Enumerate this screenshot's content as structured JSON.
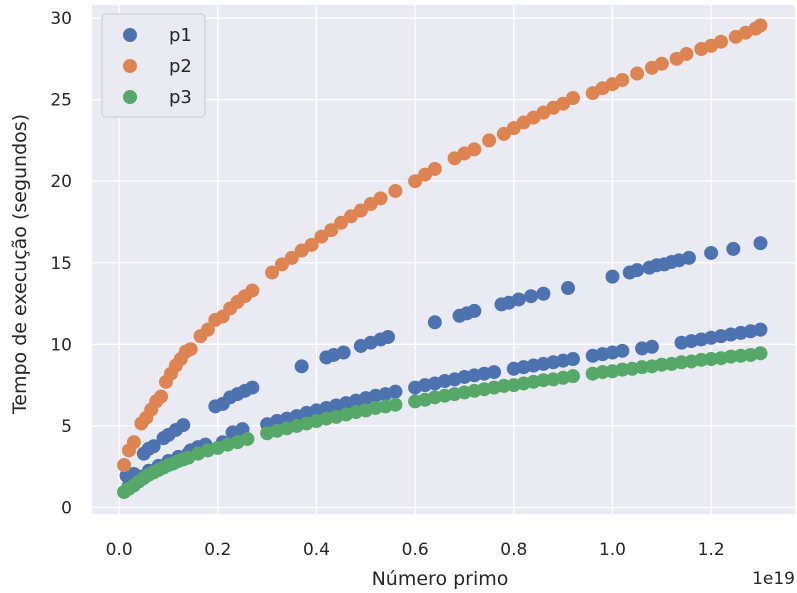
{
  "chart_data": {
    "type": "scatter",
    "xlabel": "Número primo",
    "ylabel": "Tempo de execução (segundos)",
    "x_offset_text": "1e19",
    "xlim": [
      -0.055,
      1.37
    ],
    "ylim": [
      -0.4,
      30.8
    ],
    "x_ticks": [
      0.0,
      0.2,
      0.4,
      0.6,
      0.8,
      1.0,
      1.2
    ],
    "x_tick_labels": [
      "0.0",
      "0.2",
      "0.4",
      "0.6",
      "0.8",
      "1.0",
      "1.2"
    ],
    "y_ticks": [
      0,
      5,
      10,
      15,
      20,
      25,
      30
    ],
    "y_tick_labels": [
      "0",
      "5",
      "10",
      "15",
      "20",
      "25",
      "30"
    ],
    "grid": true,
    "legend_position": "top-left",
    "colors": {
      "background": "#eaeaf2",
      "grid": "#ffffff",
      "p1": "#4c72b0",
      "p2": "#dd8452",
      "p3": "#55a868"
    },
    "series": [
      {
        "name": "p1",
        "color": "#4c72b0",
        "points": [
          [
            0.015,
            1.95
          ],
          [
            0.03,
            2.05
          ],
          [
            0.05,
            3.3
          ],
          [
            0.06,
            3.6
          ],
          [
            0.07,
            3.75
          ],
          [
            0.09,
            4.25
          ],
          [
            0.1,
            4.45
          ],
          [
            0.115,
            4.75
          ],
          [
            0.13,
            5.05
          ],
          [
            0.145,
            3.5
          ],
          [
            0.16,
            3.7
          ],
          [
            0.175,
            3.85
          ],
          [
            0.195,
            6.2
          ],
          [
            0.21,
            6.35
          ],
          [
            0.225,
            6.75
          ],
          [
            0.24,
            6.95
          ],
          [
            0.255,
            7.15
          ],
          [
            0.27,
            7.35
          ],
          [
            0.37,
            8.65
          ],
          [
            0.42,
            9.2
          ],
          [
            0.435,
            9.35
          ],
          [
            0.455,
            9.5
          ],
          [
            0.49,
            9.9
          ],
          [
            0.51,
            10.1
          ],
          [
            0.53,
            10.3
          ],
          [
            0.545,
            10.45
          ],
          [
            0.64,
            11.35
          ],
          [
            0.69,
            11.75
          ],
          [
            0.705,
            11.9
          ],
          [
            0.72,
            12.05
          ],
          [
            0.775,
            12.45
          ],
          [
            0.79,
            12.55
          ],
          [
            0.81,
            12.75
          ],
          [
            0.835,
            12.95
          ],
          [
            0.86,
            13.1
          ],
          [
            0.91,
            13.45
          ],
          [
            1.0,
            14.15
          ],
          [
            1.035,
            14.4
          ],
          [
            1.05,
            14.55
          ],
          [
            1.075,
            14.7
          ],
          [
            1.09,
            14.85
          ],
          [
            1.105,
            14.9
          ],
          [
            1.12,
            15.05
          ],
          [
            1.135,
            15.15
          ],
          [
            1.155,
            15.3
          ],
          [
            1.2,
            15.6
          ],
          [
            1.245,
            15.85
          ],
          [
            1.3,
            16.2
          ],
          [
            0.02,
            1.35
          ],
          [
            0.04,
            1.9
          ],
          [
            0.06,
            2.25
          ],
          [
            0.08,
            2.55
          ],
          [
            0.1,
            2.85
          ],
          [
            0.12,
            3.1
          ],
          [
            0.14,
            3.3
          ],
          [
            0.16,
            3.55
          ],
          [
            0.21,
            4.0
          ],
          [
            0.23,
            4.6
          ],
          [
            0.25,
            4.8
          ],
          [
            0.3,
            5.1
          ],
          [
            0.32,
            5.3
          ],
          [
            0.34,
            5.45
          ],
          [
            0.36,
            5.6
          ],
          [
            0.38,
            5.8
          ],
          [
            0.4,
            5.95
          ],
          [
            0.42,
            6.1
          ],
          [
            0.44,
            6.25
          ],
          [
            0.46,
            6.4
          ],
          [
            0.48,
            6.55
          ],
          [
            0.5,
            6.7
          ],
          [
            0.52,
            6.85
          ],
          [
            0.54,
            6.95
          ],
          [
            0.56,
            7.1
          ],
          [
            0.6,
            7.35
          ],
          [
            0.62,
            7.5
          ],
          [
            0.64,
            7.6
          ],
          [
            0.66,
            7.75
          ],
          [
            0.68,
            7.85
          ],
          [
            0.7,
            8.0
          ],
          [
            0.72,
            8.1
          ],
          [
            0.74,
            8.2
          ],
          [
            0.76,
            8.3
          ],
          [
            0.8,
            8.5
          ],
          [
            0.82,
            8.6
          ],
          [
            0.84,
            8.7
          ],
          [
            0.86,
            8.8
          ],
          [
            0.88,
            8.9
          ],
          [
            0.9,
            9.0
          ],
          [
            0.92,
            9.1
          ],
          [
            0.96,
            9.3
          ],
          [
            0.98,
            9.4
          ],
          [
            1.0,
            9.5
          ],
          [
            1.02,
            9.6
          ],
          [
            1.06,
            9.75
          ],
          [
            1.08,
            9.85
          ],
          [
            1.14,
            10.1
          ],
          [
            1.16,
            10.2
          ],
          [
            1.18,
            10.3
          ],
          [
            1.2,
            10.4
          ],
          [
            1.22,
            10.5
          ],
          [
            1.24,
            10.6
          ],
          [
            1.26,
            10.7
          ],
          [
            1.28,
            10.8
          ],
          [
            1.3,
            10.9
          ]
        ]
      },
      {
        "name": "p2",
        "color": "#dd8452",
        "points": [
          [
            0.01,
            2.6
          ],
          [
            0.02,
            3.5
          ],
          [
            0.03,
            4.0
          ],
          [
            0.045,
            5.15
          ],
          [
            0.055,
            5.5
          ],
          [
            0.065,
            6.0
          ],
          [
            0.075,
            6.5
          ],
          [
            0.085,
            6.8
          ],
          [
            0.095,
            7.7
          ],
          [
            0.105,
            8.2
          ],
          [
            0.115,
            8.7
          ],
          [
            0.125,
            9.1
          ],
          [
            0.135,
            9.55
          ],
          [
            0.145,
            9.7
          ],
          [
            0.165,
            10.5
          ],
          [
            0.18,
            10.9
          ],
          [
            0.195,
            11.5
          ],
          [
            0.21,
            11.7
          ],
          [
            0.225,
            12.2
          ],
          [
            0.24,
            12.6
          ],
          [
            0.255,
            12.95
          ],
          [
            0.27,
            13.3
          ],
          [
            0.31,
            14.4
          ],
          [
            0.33,
            14.9
          ],
          [
            0.35,
            15.3
          ],
          [
            0.37,
            15.75
          ],
          [
            0.39,
            16.1
          ],
          [
            0.41,
            16.6
          ],
          [
            0.43,
            17.0
          ],
          [
            0.45,
            17.45
          ],
          [
            0.47,
            17.85
          ],
          [
            0.49,
            18.2
          ],
          [
            0.51,
            18.6
          ],
          [
            0.53,
            18.95
          ],
          [
            0.56,
            19.4
          ],
          [
            0.6,
            20.0
          ],
          [
            0.62,
            20.4
          ],
          [
            0.64,
            20.75
          ],
          [
            0.68,
            21.4
          ],
          [
            0.7,
            21.7
          ],
          [
            0.72,
            21.95
          ],
          [
            0.75,
            22.5
          ],
          [
            0.78,
            22.9
          ],
          [
            0.8,
            23.25
          ],
          [
            0.82,
            23.6
          ],
          [
            0.84,
            23.9
          ],
          [
            0.86,
            24.2
          ],
          [
            0.88,
            24.5
          ],
          [
            0.9,
            24.75
          ],
          [
            0.92,
            25.1
          ],
          [
            0.96,
            25.4
          ],
          [
            0.98,
            25.7
          ],
          [
            1.0,
            25.95
          ],
          [
            1.02,
            26.2
          ],
          [
            1.05,
            26.6
          ],
          [
            1.08,
            26.95
          ],
          [
            1.1,
            27.2
          ],
          [
            1.13,
            27.5
          ],
          [
            1.15,
            27.8
          ],
          [
            1.18,
            28.1
          ],
          [
            1.2,
            28.3
          ],
          [
            1.22,
            28.55
          ],
          [
            1.25,
            28.85
          ],
          [
            1.27,
            29.1
          ],
          [
            1.29,
            29.35
          ],
          [
            1.3,
            29.55
          ]
        ]
      },
      {
        "name": "p3",
        "color": "#55a868",
        "points": [
          [
            0.01,
            0.95
          ],
          [
            0.02,
            1.15
          ],
          [
            0.03,
            1.35
          ],
          [
            0.04,
            1.6
          ],
          [
            0.05,
            1.8
          ],
          [
            0.06,
            2.0
          ],
          [
            0.07,
            2.15
          ],
          [
            0.08,
            2.3
          ],
          [
            0.09,
            2.45
          ],
          [
            0.1,
            2.6
          ],
          [
            0.11,
            2.7
          ],
          [
            0.12,
            2.85
          ],
          [
            0.13,
            2.95
          ],
          [
            0.14,
            3.05
          ],
          [
            0.16,
            3.3
          ],
          [
            0.18,
            3.5
          ],
          [
            0.2,
            3.65
          ],
          [
            0.22,
            3.85
          ],
          [
            0.24,
            4.0
          ],
          [
            0.26,
            4.2
          ],
          [
            0.3,
            4.55
          ],
          [
            0.32,
            4.7
          ],
          [
            0.34,
            4.85
          ],
          [
            0.36,
            5.0
          ],
          [
            0.38,
            5.15
          ],
          [
            0.4,
            5.3
          ],
          [
            0.42,
            5.45
          ],
          [
            0.44,
            5.55
          ],
          [
            0.46,
            5.7
          ],
          [
            0.48,
            5.85
          ],
          [
            0.5,
            5.95
          ],
          [
            0.52,
            6.1
          ],
          [
            0.54,
            6.2
          ],
          [
            0.56,
            6.3
          ],
          [
            0.6,
            6.5
          ],
          [
            0.62,
            6.6
          ],
          [
            0.64,
            6.75
          ],
          [
            0.66,
            6.85
          ],
          [
            0.68,
            6.95
          ],
          [
            0.7,
            7.05
          ],
          [
            0.72,
            7.15
          ],
          [
            0.74,
            7.25
          ],
          [
            0.76,
            7.35
          ],
          [
            0.78,
            7.45
          ],
          [
            0.8,
            7.5
          ],
          [
            0.82,
            7.6
          ],
          [
            0.84,
            7.7
          ],
          [
            0.86,
            7.8
          ],
          [
            0.88,
            7.85
          ],
          [
            0.9,
            7.95
          ],
          [
            0.92,
            8.05
          ],
          [
            0.96,
            8.2
          ],
          [
            0.98,
            8.3
          ],
          [
            1.0,
            8.35
          ],
          [
            1.02,
            8.45
          ],
          [
            1.04,
            8.5
          ],
          [
            1.06,
            8.6
          ],
          [
            1.08,
            8.65
          ],
          [
            1.1,
            8.75
          ],
          [
            1.12,
            8.8
          ],
          [
            1.14,
            8.9
          ],
          [
            1.16,
            8.95
          ],
          [
            1.18,
            9.05
          ],
          [
            1.2,
            9.1
          ],
          [
            1.22,
            9.15
          ],
          [
            1.24,
            9.25
          ],
          [
            1.26,
            9.3
          ],
          [
            1.28,
            9.35
          ],
          [
            1.3,
            9.45
          ]
        ]
      }
    ]
  }
}
